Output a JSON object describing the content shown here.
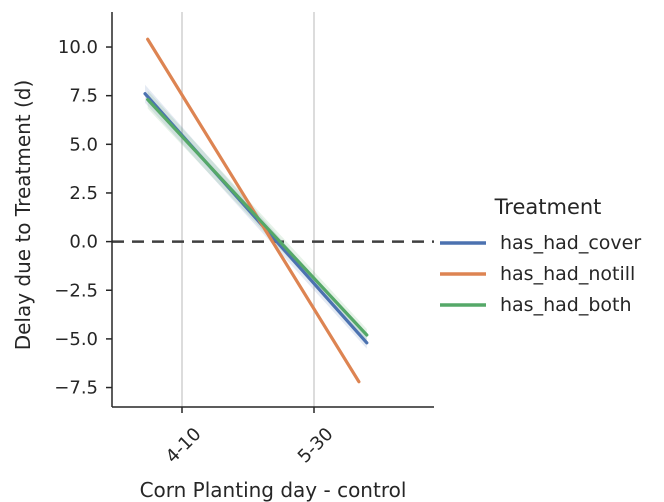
{
  "chart_data": {
    "type": "line",
    "xlabel": "Corn Planting day - control",
    "ylabel": "Delay due to Treatment (d)",
    "x_ticks": [
      "4-10",
      "5-30"
    ],
    "y_ticks": [
      "10.0",
      "7.5",
      "5.0",
      "2.5",
      "0.0",
      "−2.5",
      "−5.0",
      "−7.5"
    ],
    "ylim": [
      -8.5,
      11.8
    ],
    "grid": "vertical lines at x ticks",
    "reference_line": {
      "y": 0,
      "style": "dashed"
    },
    "legend_title": "Treatment",
    "legend_position": "right",
    "series": [
      {
        "name": "has_had_cover",
        "color": "#4c72b0",
        "points": [
          {
            "day": 86,
            "value": 7.6
          },
          {
            "day": 170,
            "value": -5.2
          }
        ],
        "confidence_band": true
      },
      {
        "name": "has_had_notill",
        "color": "#dd8452",
        "points": [
          {
            "day": 87,
            "value": 10.4
          },
          {
            "day": 167,
            "value": -7.2
          }
        ],
        "confidence_band": false
      },
      {
        "name": "has_had_both",
        "color": "#55a868",
        "points": [
          {
            "day": 87,
            "value": 7.3
          },
          {
            "day": 170,
            "value": -4.8
          }
        ],
        "confidence_band": true
      }
    ]
  }
}
